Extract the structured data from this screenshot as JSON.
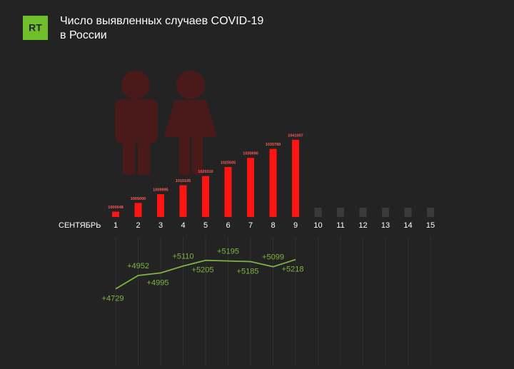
{
  "logo": "RT",
  "chart_data": [
    {
      "type": "bar",
      "title": [
        "Число выявленных случаев COVID-19",
        "в России"
      ],
      "xlabel": "СЕНТЯБРЬ",
      "categories": [
        "1",
        "2",
        "3",
        "4",
        "5",
        "6",
        "7",
        "8",
        "9",
        "10",
        "11",
        "12",
        "13",
        "14",
        "15"
      ],
      "values": [
        1000048,
        1005000,
        1009995,
        1015105,
        1020310,
        1025505,
        1030690,
        1035789,
        1041007,
        null,
        null,
        null,
        null,
        null,
        null
      ],
      "color": "#ff1414",
      "ylim": [
        997000,
        1045000
      ]
    },
    {
      "type": "line",
      "values": [
        4729,
        4952,
        4995,
        5110,
        5205,
        5195,
        5185,
        5099,
        5218
      ],
      "value_labels": [
        "+4729",
        "+4952",
        "+4995",
        "+5110",
        "+5205",
        "+5195",
        "+5185",
        "+5099",
        "+5218"
      ],
      "color": "#7db544",
      "ylim": [
        4500,
        5500
      ]
    }
  ]
}
